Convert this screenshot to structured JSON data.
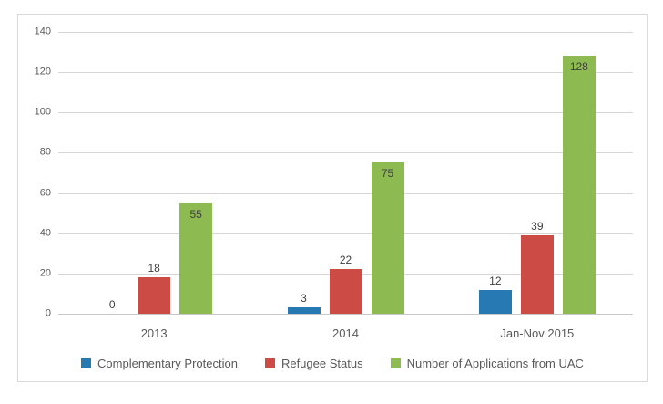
{
  "chart_data": {
    "type": "bar",
    "title": "",
    "categories": [
      "2013",
      "2014",
      "Jan-Nov 2015"
    ],
    "series": [
      {
        "name": "Complementary Protection",
        "color": "#2679b3",
        "values": [
          0,
          3,
          12
        ],
        "label_position": "outside"
      },
      {
        "name": "Refugee Status",
        "color": "#cd4b45",
        "values": [
          18,
          22,
          39
        ],
        "label_position": "outside"
      },
      {
        "name": "Number of Applications from UAC",
        "color": "#8dba51",
        "values": [
          55,
          75,
          128
        ],
        "label_position": "inside"
      }
    ],
    "y_axis": {
      "min": 0,
      "max": 140,
      "tick_interval": 20,
      "ticks": [
        0,
        20,
        40,
        60,
        80,
        100,
        120,
        140
      ]
    },
    "grid": true,
    "legend_position": "bottom"
  },
  "colors": {
    "frame_border": "#d9d9d9",
    "gridline": "#d6d6d6",
    "axis_line": "#c9c9c9",
    "tick_text": "#595959",
    "data_label_text": "#404040",
    "background": "#ffffff"
  }
}
